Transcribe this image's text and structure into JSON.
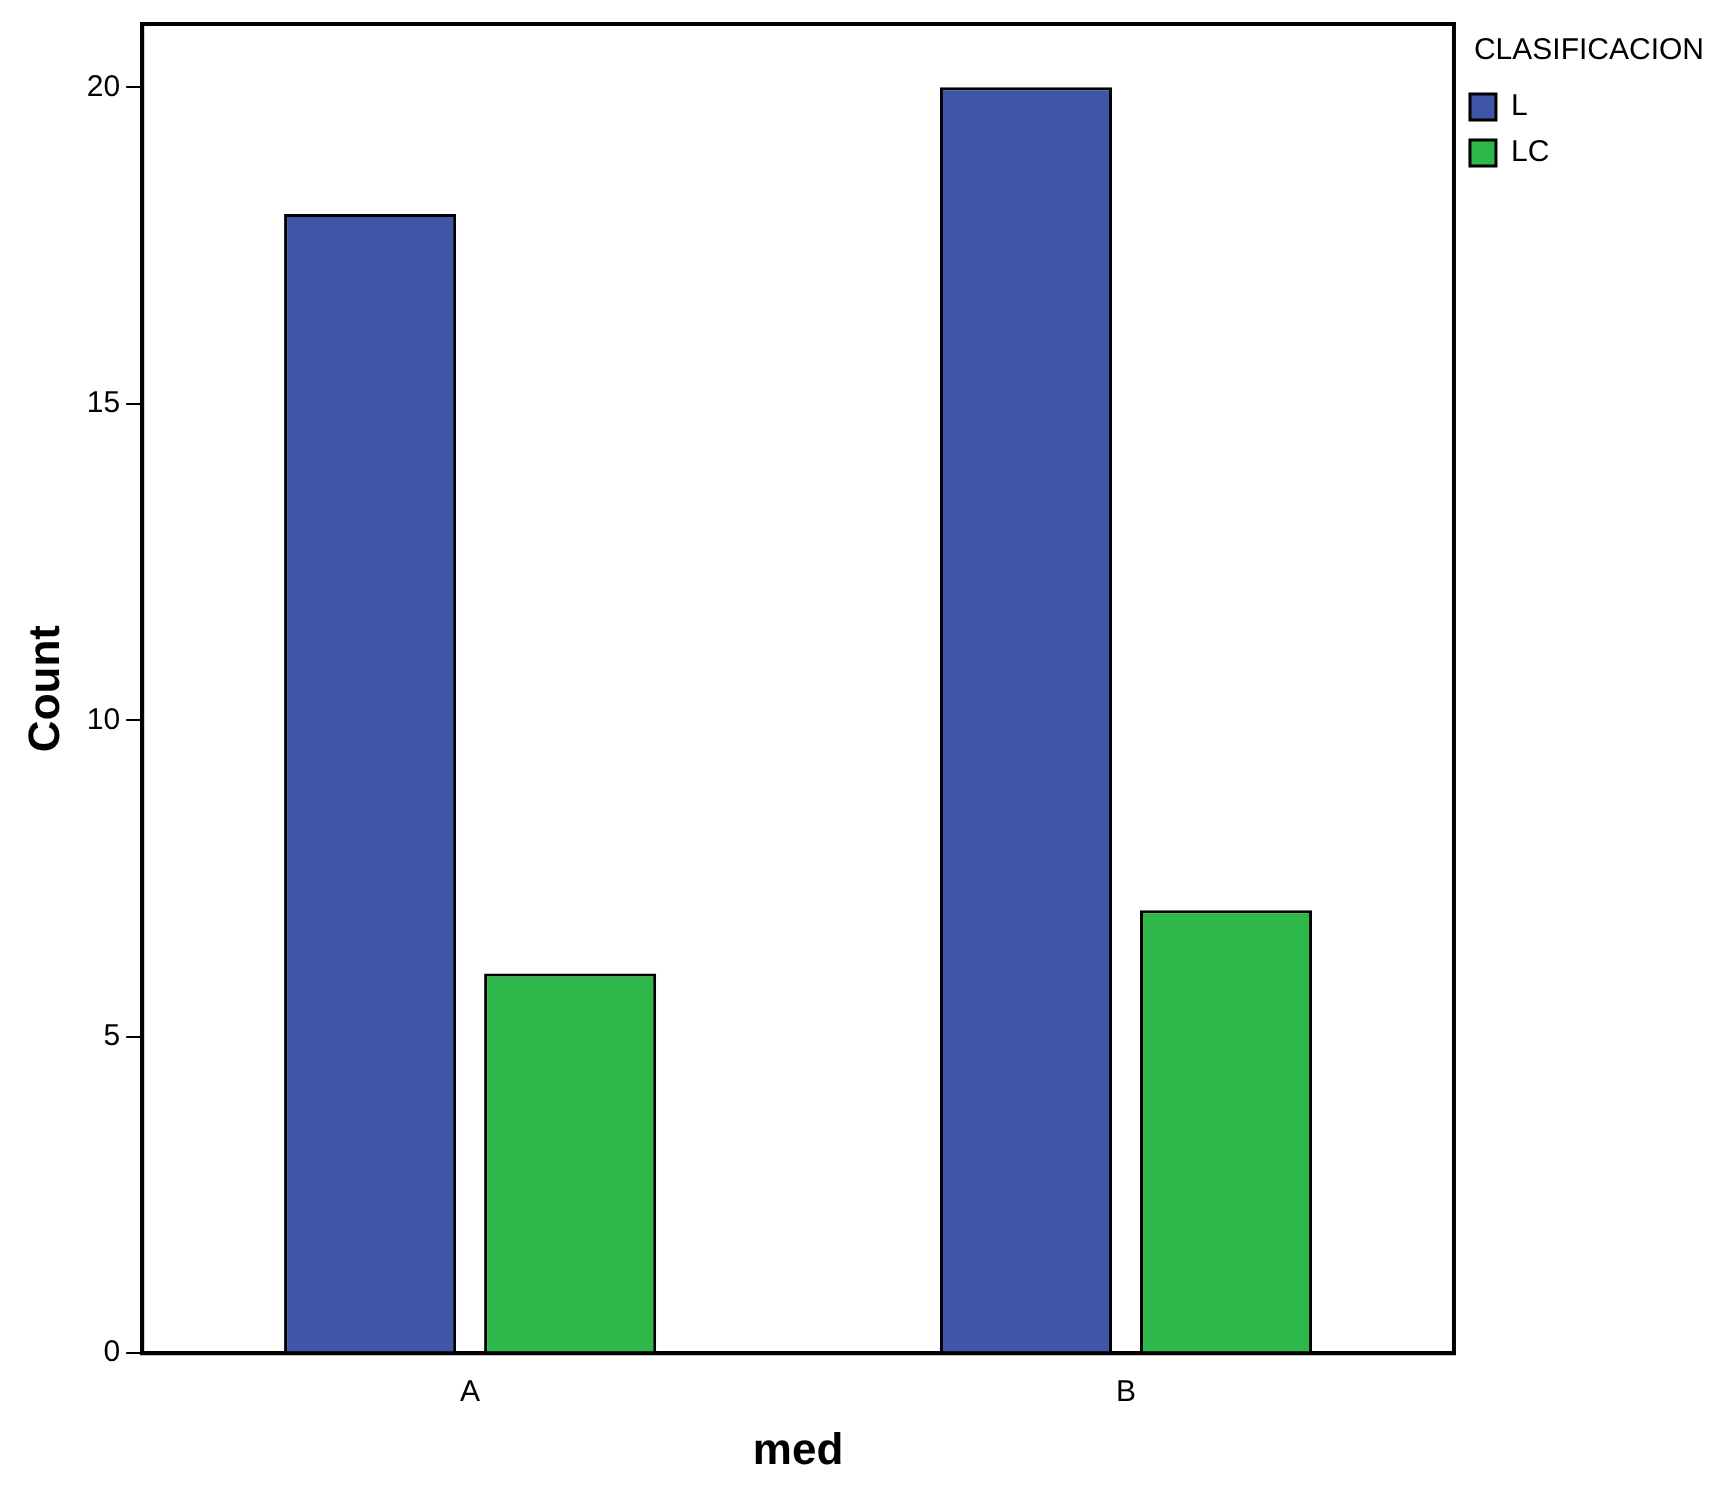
{
  "chart_data": {
    "type": "bar",
    "xlabel": "med",
    "ylabel": "Count",
    "legend_title": "CLASIFICACION",
    "categories": [
      "A",
      "B"
    ],
    "series": [
      {
        "name": "L",
        "color": "#3f56a8",
        "values": [
          18,
          20
        ]
      },
      {
        "name": "LC",
        "color": "#2fb84a",
        "values": [
          6,
          7
        ]
      }
    ],
    "ylim": [
      0,
      21
    ],
    "yticks": [
      0,
      5,
      10,
      15,
      20
    ],
    "grid": false,
    "legend": "top right"
  }
}
